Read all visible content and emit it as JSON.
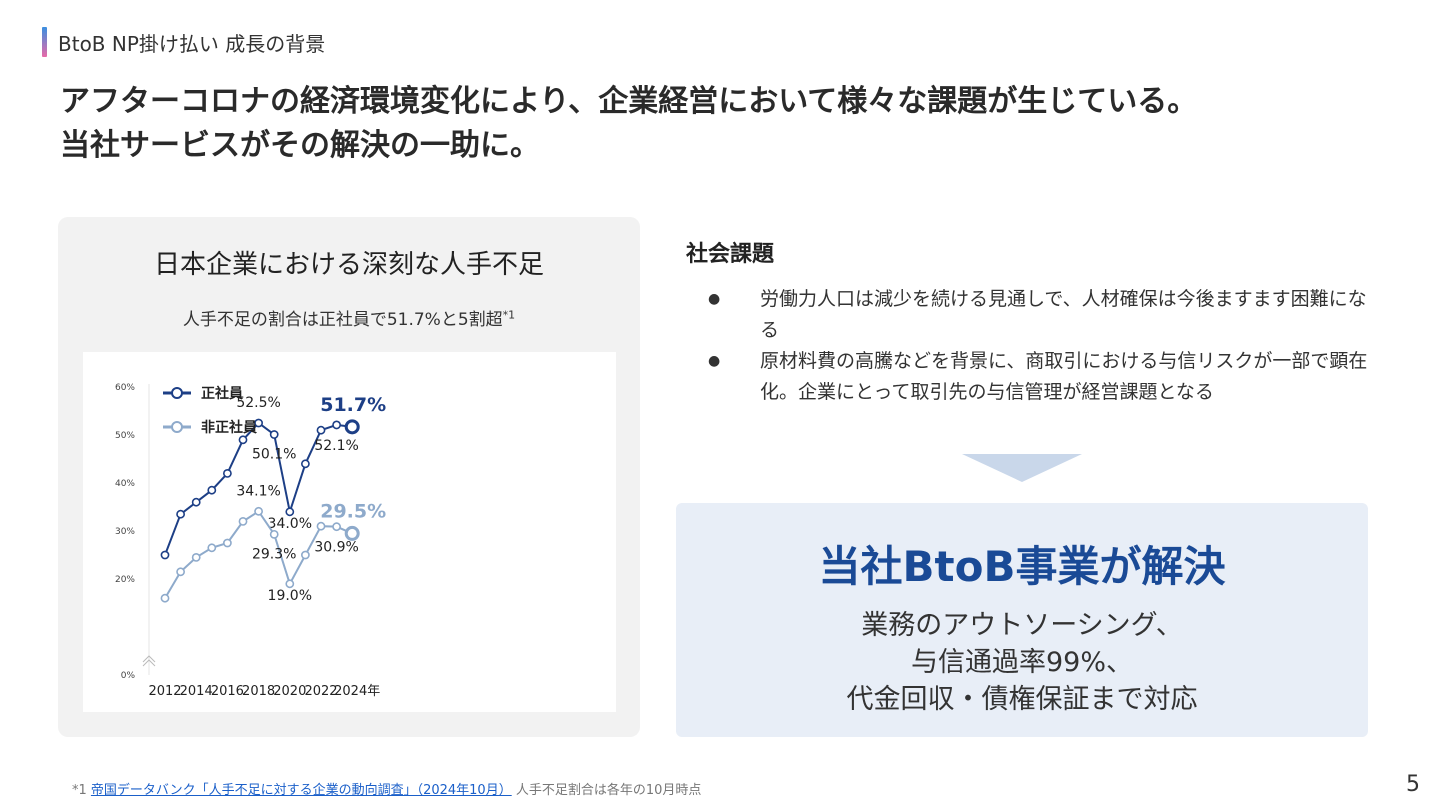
{
  "section": {
    "label": "BtoB NP掛け払い 成長の背景"
  },
  "headline": {
    "line1": "アフターコロナの経済環境変化により、企業経営において様々な課題が生じている。",
    "line2": "当社サービスがその解決の一助に。"
  },
  "left_panel": {
    "title": "日本企業における深刻な人手不足",
    "subtitle": "人手不足の割合は正社員で51.7%と5割超",
    "subtitle_note": "*1"
  },
  "chart_data": {
    "type": "line",
    "x": [
      2012,
      2013,
      2014,
      2015,
      2016,
      2017,
      2018,
      2019,
      2020,
      2021,
      2022,
      2023,
      2024
    ],
    "x_tick_labels": [
      "2012",
      "2014",
      "2016",
      "2018",
      "2020",
      "2022",
      "2024年"
    ],
    "y_tick_labels": [
      "60%",
      "50%",
      "40%",
      "30%",
      "20%",
      "0%"
    ],
    "ylim": [
      0,
      60
    ],
    "legend_placement": "top-left",
    "series": [
      {
        "name": "正社員",
        "color": "#1d3f86",
        "values": [
          25.0,
          33.5,
          36.0,
          38.5,
          42.0,
          49.0,
          52.5,
          50.1,
          34.0,
          44.0,
          51.0,
          52.1,
          51.7
        ],
        "labels": [
          {
            "index": 6,
            "text": "52.5%"
          },
          {
            "index": 7,
            "text": "50.1%"
          },
          {
            "index": 8,
            "text": "34.0%"
          },
          {
            "index": 11,
            "text": "52.1%"
          },
          {
            "index": 12,
            "text": "51.7%"
          }
        ]
      },
      {
        "name": "非正社員",
        "color": "#8eaacb",
        "values": [
          16.0,
          21.5,
          24.5,
          26.5,
          27.5,
          32.0,
          34.1,
          29.3,
          19.0,
          25.0,
          31.0,
          30.9,
          29.5
        ],
        "labels": [
          {
            "index": 6,
            "text": "34.1%"
          },
          {
            "index": 7,
            "text": "29.3%"
          },
          {
            "index": 8,
            "text": "19.0%"
          },
          {
            "index": 11,
            "text": "30.9%"
          },
          {
            "index": 12,
            "text": "29.5%"
          }
        ]
      }
    ]
  },
  "issues": {
    "title": "社会課題",
    "bullet": "●",
    "items": [
      "労働力人口は減少を続ける見通しで、人材確保は今後ますます困難になる",
      "原材料費の高騰などを背景に、商取引における与信リスクが一部で顕在化。企業にとって取引先の与信管理が経営課題となる"
    ]
  },
  "solution": {
    "title": "当社BtoB事業が解決",
    "line1": "業務のアウトソーシング、",
    "line2": "与信通過率99%、",
    "line3": "代金回収・債権保証まで対応"
  },
  "footnote": {
    "marker": "*1",
    "link_text": "帝国データバンク「人手不足に対する企業の動向調査」（2024年10月）",
    "note": "人手不足割合は各年の10月時点"
  },
  "page_number": "5"
}
